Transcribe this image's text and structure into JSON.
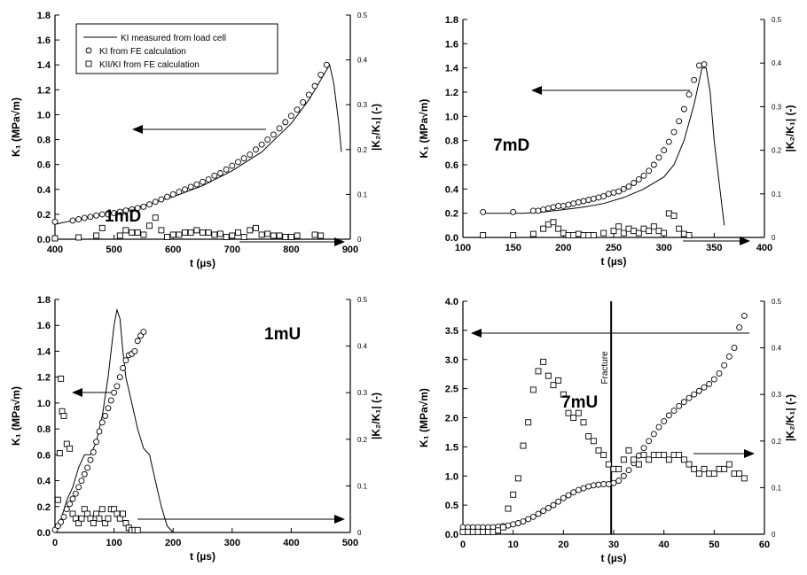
{
  "legend": {
    "items": [
      {
        "marker": "line",
        "label": "KI measured from load cell"
      },
      {
        "marker": "circle",
        "label": "KI from FE calculation"
      },
      {
        "marker": "square",
        "label": "KII/KI from FE calculation"
      }
    ]
  },
  "chart_data": [
    {
      "type": "scatter",
      "panel_label": "1mD",
      "xlabel": "t  (µs)",
      "ylabel": "K₁  (MPa√m)",
      "y2label": "|K₂/K₁| (-)",
      "xlim": [
        400,
        900
      ],
      "xticks": [
        400,
        500,
        600,
        700,
        800,
        900
      ],
      "ylim": [
        0,
        1.8
      ],
      "yticks": [
        0.0,
        0.2,
        0.4,
        0.6,
        0.8,
        1.0,
        1.2,
        1.4,
        1.6,
        1.8
      ],
      "y2lim": [
        0,
        0.5
      ],
      "y2ticks": [
        0,
        0.1,
        0.2,
        0.3,
        0.4,
        0.5
      ],
      "series": [
        {
          "name": "KI measured from load cell",
          "kind": "line",
          "axis": "left",
          "x": [
            400,
            450,
            500,
            550,
            600,
            650,
            700,
            750,
            800,
            830,
            850,
            860,
            865,
            872,
            880,
            885
          ],
          "y": [
            0.12,
            0.17,
            0.22,
            0.27,
            0.34,
            0.43,
            0.55,
            0.7,
            0.93,
            1.12,
            1.28,
            1.36,
            1.4,
            1.25,
            0.95,
            0.7
          ]
        },
        {
          "name": "KI from FE calculation",
          "kind": "circle",
          "axis": "left",
          "x": [
            400,
            430,
            440,
            450,
            460,
            470,
            480,
            490,
            500,
            510,
            520,
            530,
            540,
            550,
            560,
            570,
            580,
            590,
            600,
            610,
            620,
            630,
            640,
            650,
            660,
            670,
            680,
            690,
            700,
            710,
            720,
            730,
            740,
            750,
            760,
            770,
            780,
            790,
            800,
            810,
            820,
            830,
            840,
            850,
            860
          ],
          "y": [
            0.14,
            0.15,
            0.16,
            0.17,
            0.18,
            0.19,
            0.2,
            0.2,
            0.21,
            0.22,
            0.23,
            0.24,
            0.25,
            0.26,
            0.28,
            0.3,
            0.32,
            0.34,
            0.36,
            0.38,
            0.4,
            0.42,
            0.44,
            0.46,
            0.48,
            0.51,
            0.53,
            0.56,
            0.59,
            0.62,
            0.65,
            0.68,
            0.72,
            0.76,
            0.8,
            0.84,
            0.89,
            0.94,
            0.99,
            1.04,
            1.1,
            1.16,
            1.23,
            1.32,
            1.4
          ]
        },
        {
          "name": "KII/KI from FE calculation",
          "kind": "square",
          "axis": "right",
          "x": [
            400,
            440,
            470,
            480,
            510,
            520,
            530,
            540,
            550,
            560,
            570,
            580,
            590,
            600,
            610,
            620,
            630,
            640,
            650,
            660,
            670,
            680,
            690,
            700,
            710,
            720,
            730,
            740,
            750,
            760,
            770,
            780,
            790,
            800,
            810,
            840,
            850
          ],
          "y": [
            0.002,
            0.004,
            0.008,
            0.025,
            0.008,
            0.02,
            0.015,
            0.015,
            0.01,
            0.03,
            0.048,
            0.02,
            0.005,
            0.01,
            0.01,
            0.015,
            0.015,
            0.02,
            0.015,
            0.015,
            0.01,
            0.012,
            0.005,
            0.008,
            0.015,
            0.005,
            0.02,
            0.025,
            0.01,
            0.012,
            0.008,
            0.008,
            0.005,
            0.005,
            0.008,
            0.01,
            0.008
          ]
        }
      ]
    },
    {
      "type": "scatter",
      "panel_label": "7mD",
      "xlabel": "t  (µs)",
      "ylabel": "K₁  (MPa√m)",
      "y2label": "|K₂/K₁| (-)",
      "xlim": [
        100,
        400
      ],
      "xticks": [
        100,
        150,
        200,
        250,
        300,
        350,
        400
      ],
      "ylim": [
        0,
        1.8
      ],
      "yticks": [
        0.0,
        0.2,
        0.4,
        0.6,
        0.8,
        1.0,
        1.2,
        1.4,
        1.6,
        1.8
      ],
      "y2lim": [
        0,
        0.5
      ],
      "y2ticks": [
        0,
        0.1,
        0.2,
        0.3,
        0.4,
        0.5
      ],
      "series": [
        {
          "name": "KI measured from load cell",
          "kind": "line",
          "axis": "left",
          "x": [
            120,
            160,
            180,
            200,
            220,
            240,
            260,
            280,
            300,
            310,
            320,
            330,
            338,
            342,
            346,
            350,
            355,
            360
          ],
          "y": [
            0.2,
            0.2,
            0.21,
            0.23,
            0.25,
            0.28,
            0.33,
            0.4,
            0.5,
            0.6,
            0.8,
            1.1,
            1.4,
            1.4,
            1.2,
            0.8,
            0.45,
            0.1
          ]
        },
        {
          "name": "KI from FE calculation",
          "kind": "circle",
          "axis": "left",
          "x": [
            120,
            150,
            170,
            175,
            180,
            185,
            190,
            195,
            200,
            205,
            210,
            215,
            220,
            225,
            230,
            235,
            240,
            245,
            250,
            255,
            260,
            265,
            270,
            275,
            280,
            285,
            290,
            295,
            300,
            305,
            310,
            315,
            320,
            325,
            330,
            335,
            340
          ],
          "y": [
            0.21,
            0.21,
            0.22,
            0.22,
            0.23,
            0.24,
            0.25,
            0.26,
            0.26,
            0.27,
            0.28,
            0.29,
            0.3,
            0.31,
            0.32,
            0.33,
            0.34,
            0.36,
            0.37,
            0.38,
            0.4,
            0.42,
            0.45,
            0.48,
            0.51,
            0.55,
            0.6,
            0.66,
            0.72,
            0.79,
            0.87,
            0.96,
            1.06,
            1.18,
            1.3,
            1.42,
            1.43
          ]
        },
        {
          "name": "KII/KI from FE calculation",
          "kind": "square",
          "axis": "right",
          "x": [
            120,
            150,
            170,
            180,
            185,
            190,
            195,
            200,
            205,
            210,
            215,
            220,
            225,
            230,
            240,
            250,
            255,
            260,
            265,
            270,
            275,
            280,
            285,
            290,
            295,
            300,
            305,
            310,
            315,
            320,
            325
          ],
          "y": [
            0.005,
            0.005,
            0.008,
            0.02,
            0.03,
            0.035,
            0.02,
            0.01,
            0.005,
            0.005,
            0.008,
            0.005,
            0.005,
            0.005,
            0.01,
            0.015,
            0.025,
            0.01,
            0.02,
            0.015,
            0.01,
            0.02,
            0.015,
            0.025,
            0.015,
            0.01,
            0.055,
            0.05,
            0.02,
            0.008,
            0.005
          ]
        }
      ]
    },
    {
      "type": "scatter",
      "panel_label": "1mU",
      "xlabel": "t  (µs)",
      "ylabel": "K₁  (MPa√m)",
      "y2label": "|K₂/K₁| (-)",
      "xlim": [
        0,
        500
      ],
      "xticks": [
        0,
        100,
        200,
        300,
        400,
        500
      ],
      "ylim": [
        0,
        1.8
      ],
      "yticks": [
        0.0,
        0.2,
        0.4,
        0.6,
        0.8,
        1.0,
        1.2,
        1.4,
        1.6,
        1.8
      ],
      "y2lim": [
        0,
        0.5
      ],
      "y2ticks": [
        0,
        0.1,
        0.2,
        0.3,
        0.4,
        0.5
      ],
      "series": [
        {
          "name": "KI measured from load cell",
          "kind": "line",
          "axis": "left",
          "x": [
            0,
            10,
            20,
            30,
            40,
            50,
            60,
            70,
            80,
            90,
            100,
            105,
            110,
            115,
            120,
            130,
            140,
            150,
            160,
            170,
            180,
            190,
            200
          ],
          "y": [
            0.02,
            0.1,
            0.25,
            0.35,
            0.5,
            0.6,
            0.6,
            0.7,
            0.9,
            1.2,
            1.6,
            1.72,
            1.65,
            1.4,
            1.2,
            1.0,
            0.8,
            0.65,
            0.6,
            0.4,
            0.2,
            0.05,
            0.0
          ]
        },
        {
          "name": "KI from FE calculation",
          "kind": "circle",
          "axis": "left",
          "x": [
            0,
            5,
            10,
            15,
            20,
            25,
            30,
            35,
            40,
            45,
            50,
            55,
            60,
            65,
            70,
            75,
            80,
            85,
            90,
            95,
            100,
            105,
            110,
            115,
            120,
            125,
            130,
            135,
            140,
            145,
            150
          ],
          "y": [
            0.02,
            0.05,
            0.08,
            0.12,
            0.18,
            0.22,
            0.26,
            0.3,
            0.35,
            0.4,
            0.45,
            0.5,
            0.56,
            0.62,
            0.7,
            0.78,
            0.85,
            0.9,
            0.96,
            1.02,
            1.08,
            1.13,
            1.2,
            1.27,
            1.33,
            1.37,
            1.38,
            1.4,
            1.48,
            1.52,
            1.55
          ]
        },
        {
          "name": "KII/KI from FE calculation",
          "kind": "square",
          "axis": "right",
          "x": [
            5,
            8,
            10,
            12,
            15,
            20,
            25,
            30,
            35,
            40,
            45,
            50,
            55,
            60,
            65,
            70,
            75,
            80,
            85,
            90,
            95,
            100,
            105,
            110,
            115,
            120,
            125,
            130,
            135,
            140
          ],
          "y": [
            0.07,
            0.17,
            0.33,
            0.26,
            0.25,
            0.19,
            0.18,
            0.04,
            0.03,
            0.02,
            0.03,
            0.05,
            0.04,
            0.03,
            0.02,
            0.04,
            0.03,
            0.05,
            0.02,
            0.03,
            0.05,
            0.05,
            0.04,
            0.03,
            0.04,
            0.02,
            0.01,
            0.005,
            0.005,
            0.005
          ]
        }
      ]
    },
    {
      "type": "scatter",
      "panel_label": "7mU",
      "annotation": "Fracture",
      "fracture_x": 29.5,
      "xlabel": "t  (µs)",
      "ylabel": "K₁  (MPa√m)",
      "y2label": "|K₂/K₁| (-)",
      "xlim": [
        0,
        60
      ],
      "xticks": [
        0,
        10,
        20,
        30,
        40,
        50,
        60
      ],
      "ylim": [
        0,
        4.0
      ],
      "yticks": [
        0.0,
        0.5,
        1.0,
        1.5,
        2.0,
        2.5,
        3.0,
        3.5,
        4.0
      ],
      "y2lim": [
        0,
        0.5
      ],
      "y2ticks": [
        0,
        0.1,
        0.2,
        0.3,
        0.4,
        0.5
      ],
      "series": [
        {
          "name": "KI from FE calculation",
          "kind": "circle",
          "axis": "left",
          "x": [
            0,
            1,
            2,
            3,
            4,
            5,
            6,
            7,
            8,
            9,
            10,
            11,
            12,
            13,
            14,
            15,
            16,
            17,
            18,
            19,
            20,
            21,
            22,
            23,
            24,
            25,
            26,
            27,
            28,
            29,
            30,
            31,
            32,
            33,
            34,
            35,
            36,
            37,
            38,
            39,
            40,
            41,
            42,
            43,
            44,
            45,
            46,
            47,
            48,
            49,
            50,
            51,
            52,
            53,
            54,
            55,
            56
          ],
          "y": [
            0.12,
            0.12,
            0.12,
            0.12,
            0.12,
            0.12,
            0.12,
            0.13,
            0.14,
            0.15,
            0.17,
            0.19,
            0.22,
            0.26,
            0.3,
            0.35,
            0.4,
            0.45,
            0.5,
            0.56,
            0.62,
            0.67,
            0.72,
            0.76,
            0.79,
            0.82,
            0.84,
            0.85,
            0.86,
            0.86,
            0.88,
            0.92,
            1.0,
            1.1,
            1.22,
            1.35,
            1.48,
            1.6,
            1.72,
            1.84,
            1.94,
            2.04,
            2.12,
            2.2,
            2.27,
            2.34,
            2.4,
            2.46,
            2.52,
            2.58,
            2.66,
            2.76,
            2.9,
            3.05,
            3.2,
            3.55,
            3.75
          ]
        },
        {
          "name": "KII/KI from FE calculation",
          "kind": "square",
          "axis": "right",
          "x": [
            0,
            1,
            2,
            3,
            4,
            5,
            6,
            7,
            8,
            9,
            10,
            11,
            12,
            13,
            14,
            15,
            16,
            17,
            18,
            19,
            20,
            21,
            22,
            23,
            24,
            25,
            26,
            27,
            28,
            29,
            30,
            31,
            32,
            33,
            34,
            35,
            36,
            37,
            38,
            39,
            40,
            41,
            42,
            43,
            44,
            45,
            46,
            47,
            48,
            49,
            50,
            51,
            52,
            53,
            54,
            55,
            56
          ],
          "y": [
            0.005,
            0.005,
            0.005,
            0.005,
            0.005,
            0.005,
            0.005,
            0.008,
            0.015,
            0.055,
            0.085,
            0.12,
            0.19,
            0.24,
            0.31,
            0.35,
            0.37,
            0.34,
            0.32,
            0.33,
            0.3,
            0.26,
            0.25,
            0.26,
            0.24,
            0.21,
            0.2,
            0.18,
            0.17,
            0.15,
            0.14,
            0.14,
            0.16,
            0.18,
            0.16,
            0.15,
            0.17,
            0.16,
            0.17,
            0.17,
            0.17,
            0.16,
            0.17,
            0.17,
            0.16,
            0.15,
            0.14,
            0.13,
            0.14,
            0.13,
            0.13,
            0.14,
            0.14,
            0.15,
            0.13,
            0.13,
            0.12
          ]
        }
      ]
    }
  ]
}
